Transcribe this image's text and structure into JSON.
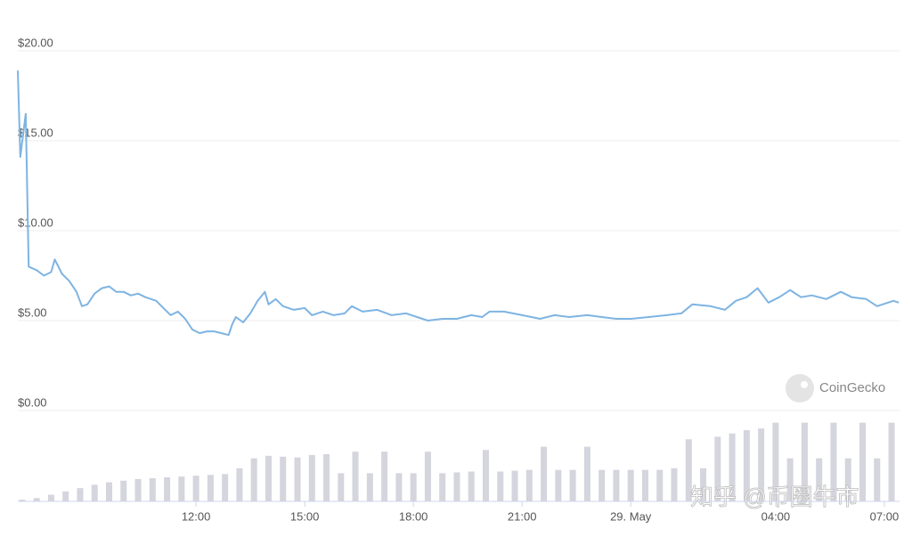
{
  "chart_data": [
    {
      "type": "line",
      "xlim": [
        7.08,
        31.42
      ],
      "xticks": [
        {
          "value": 12,
          "label": "12:00"
        },
        {
          "value": 15,
          "label": "15:00"
        },
        {
          "value": 18,
          "label": "18:00"
        },
        {
          "value": 21,
          "label": "21:00"
        },
        {
          "value": 24,
          "label": "29. May"
        },
        {
          "value": 28,
          "label": "04:00"
        },
        {
          "value": 31,
          "label": "07:00"
        }
      ],
      "ylim": [
        0,
        20
      ],
      "yticks": [
        {
          "value": 0,
          "label": "$0.00"
        },
        {
          "value": 5,
          "label": "$5.00"
        },
        {
          "value": 10,
          "label": "$10.00"
        },
        {
          "value": 15,
          "label": "$15.00"
        },
        {
          "value": 20,
          "label": "$20.00"
        }
      ],
      "grid": true,
      "annotations": [
        "CoinGecko",
        "知乎 @币圈牛市"
      ],
      "series": [
        {
          "color": "#7eb4e2",
          "x": [
            7.08,
            7.15,
            7.3,
            7.38,
            7.6,
            7.8,
            8.0,
            8.1,
            8.3,
            8.5,
            8.7,
            8.85,
            9.0,
            9.2,
            9.4,
            9.6,
            9.8,
            10.0,
            10.2,
            10.4,
            10.6,
            10.9,
            11.1,
            11.3,
            11.5,
            11.7,
            11.9,
            12.1,
            12.3,
            12.5,
            12.7,
            12.9,
            13.0,
            13.1,
            13.3,
            13.5,
            13.7,
            13.9,
            14.0,
            14.2,
            14.4,
            14.7,
            15.0,
            15.2,
            15.5,
            15.8,
            16.1,
            16.3,
            16.6,
            17.0,
            17.4,
            17.8,
            18.1,
            18.4,
            18.8,
            19.2,
            19.6,
            19.9,
            20.1,
            20.5,
            21.0,
            21.5,
            21.9,
            22.3,
            22.8,
            23.2,
            23.6,
            24.0,
            24.5,
            25.0,
            25.4,
            25.7,
            26.2,
            26.6,
            26.9,
            27.2,
            27.5,
            27.8,
            28.1,
            28.4,
            28.7,
            29.0,
            29.4,
            29.8,
            30.1,
            30.5,
            30.8,
            31.1,
            31.25,
            31.4
          ],
          "values": [
            18.9,
            14.1,
            16.5,
            8.0,
            7.8,
            7.5,
            7.7,
            8.4,
            7.6,
            7.2,
            6.6,
            5.8,
            5.9,
            6.5,
            6.8,
            6.9,
            6.6,
            6.6,
            6.4,
            6.5,
            6.3,
            6.1,
            5.7,
            5.3,
            5.5,
            5.1,
            4.5,
            4.3,
            4.4,
            4.4,
            4.3,
            4.2,
            4.8,
            5.2,
            4.9,
            5.4,
            6.1,
            6.6,
            5.9,
            6.2,
            5.8,
            5.6,
            5.7,
            5.3,
            5.5,
            5.3,
            5.4,
            5.8,
            5.5,
            5.6,
            5.3,
            5.4,
            5.2,
            5.0,
            5.1,
            5.1,
            5.3,
            5.2,
            5.5,
            5.5,
            5.3,
            5.1,
            5.3,
            5.2,
            5.3,
            5.2,
            5.1,
            5.1,
            5.2,
            5.3,
            5.4,
            5.9,
            5.8,
            5.6,
            6.1,
            6.3,
            6.8,
            6.0,
            6.3,
            6.7,
            6.3,
            6.4,
            6.2,
            6.6,
            6.3,
            6.2,
            5.8,
            6.0,
            6.1,
            6.0
          ]
        }
      ]
    },
    {
      "type": "bar",
      "xlim": [
        7.08,
        31.42
      ],
      "ylim": [
        0,
        100
      ],
      "series": [
        {
          "color": "#d4d5dd",
          "x": [
            7.2,
            7.6,
            8.0,
            8.4,
            8.8,
            9.2,
            9.6,
            10.0,
            10.4,
            10.8,
            11.2,
            11.6,
            12.0,
            12.4,
            12.8,
            13.2,
            13.6,
            14.0,
            14.4,
            14.8,
            15.2,
            15.6,
            16.0,
            16.4,
            16.8,
            17.2,
            17.6,
            18.0,
            18.4,
            18.8,
            19.2,
            19.6,
            20.0,
            20.4,
            20.8,
            21.2,
            21.6,
            22.0,
            22.4,
            22.8,
            23.2,
            23.6,
            24.0,
            24.4,
            24.8,
            25.2,
            25.6,
            26.0,
            26.4,
            26.8,
            27.2,
            27.6,
            28.0,
            28.4,
            28.8,
            29.2,
            29.6,
            30.0,
            30.4,
            30.8,
            31.2
          ],
          "values": [
            2,
            4,
            8,
            12,
            16,
            20,
            23,
            25,
            27,
            28,
            29,
            30,
            31,
            32,
            33,
            40,
            52,
            55,
            54,
            53,
            56,
            57,
            34,
            60,
            34,
            60,
            34,
            34,
            60,
            34,
            35,
            36,
            62,
            36,
            37,
            38,
            66,
            38,
            38,
            66,
            38,
            38,
            38,
            38,
            38,
            40,
            75,
            40,
            78,
            82,
            86,
            88,
            95,
            52,
            95,
            52,
            95,
            52,
            95,
            52,
            95
          ]
        }
      ]
    }
  ]
}
